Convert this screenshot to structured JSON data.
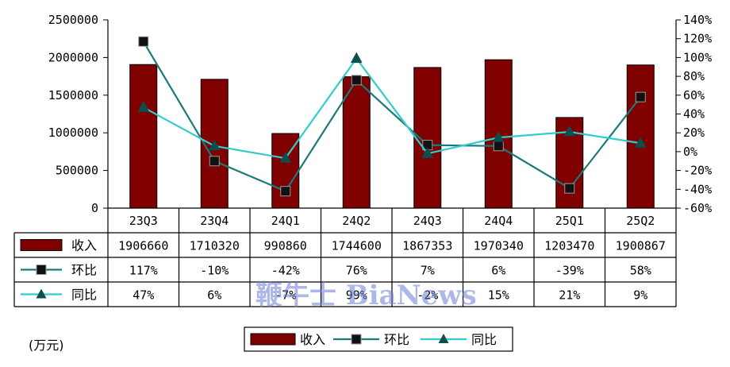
{
  "unit_note": "(万元)",
  "watermark": "鞭牛士 BiaNews",
  "colors": {
    "bar": "#800000",
    "bar_edge": "#000000",
    "qoq_line": "#1a7a7a",
    "yoy_line": "#33cccc",
    "axis": "#000000",
    "watermark": "#6b7fd6"
  },
  "chart_data": {
    "type": "bar",
    "categories": [
      "23Q3",
      "23Q4",
      "24Q1",
      "24Q2",
      "24Q3",
      "24Q4",
      "25Q1",
      "25Q2"
    ],
    "series": [
      {
        "name": "收入",
        "kind": "bar",
        "axis": "left",
        "values": [
          1906660,
          1710320,
          990860,
          1744600,
          1867353,
          1970340,
          1203470,
          1900867
        ],
        "labels": [
          "1906660",
          "1710320",
          "990860",
          "1744600",
          "1867353",
          "1970340",
          "1203470",
          "1900867"
        ]
      },
      {
        "name": "环比",
        "kind": "line",
        "marker": "square",
        "axis": "right",
        "values": [
          117,
          -10,
          -42,
          76,
          7,
          6,
          -39,
          58
        ],
        "labels": [
          "117%",
          "-10%",
          "-42%",
          "76%",
          "7%",
          "6%",
          "-39%",
          "58%"
        ]
      },
      {
        "name": "同比",
        "kind": "line",
        "marker": "triangle",
        "axis": "right",
        "values": [
          47,
          6,
          -7,
          99,
          -2,
          15,
          21,
          9
        ],
        "labels": [
          "47%",
          "6%",
          "-7%",
          "99%",
          "-2%",
          "15%",
          "21%",
          "9%"
        ]
      }
    ],
    "left_axis": {
      "ylim": [
        0,
        2500000
      ],
      "ticks": [
        0,
        500000,
        1000000,
        1500000,
        2000000,
        2500000
      ],
      "tick_labels": [
        "0",
        "500000",
        "1000000",
        "1500000",
        "2000000",
        "2500000"
      ]
    },
    "right_axis": {
      "ylim": [
        -60,
        140
      ],
      "ticks": [
        -60,
        -40,
        -20,
        0,
        20,
        40,
        60,
        80,
        100,
        120,
        140
      ],
      "tick_labels": [
        "-60%",
        "-40%",
        "-20%",
        "0%",
        "20%",
        "40%",
        "60%",
        "80%",
        "100%",
        "120%",
        "140%"
      ]
    },
    "grid": false,
    "data_table": true,
    "legend": {
      "position": "bottom",
      "items": [
        "收入",
        "环比",
        "同比"
      ]
    }
  }
}
